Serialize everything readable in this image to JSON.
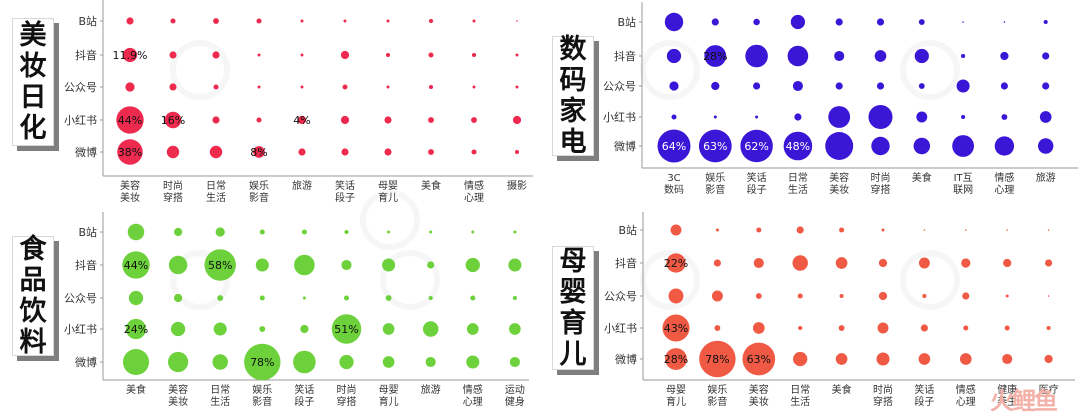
{
  "chart_data": [
    {
      "type": "bubble-matrix",
      "title": "美妆日化",
      "color": "#ee2b4f",
      "rows": [
        "B站",
        "抖音",
        "公众号",
        "小红书",
        "微博"
      ],
      "columns": [
        [
          "美容",
          "美妆"
        ],
        [
          "时尚",
          "穿搭"
        ],
        [
          "日常",
          "生活"
        ],
        [
          "娱乐",
          "影音"
        ],
        [
          "旅游"
        ],
        [
          "笑话",
          "段子"
        ],
        [
          "母婴",
          "育儿"
        ],
        [
          "美食"
        ],
        [
          "情感",
          "心理"
        ],
        [
          "摄影"
        ]
      ],
      "values": [
        [
          3,
          1.5,
          2,
          1.5,
          0.5,
          0.5,
          0.5,
          1,
          0.5,
          0
        ],
        [
          11.9,
          3,
          3,
          0.5,
          0.5,
          4,
          1,
          1.5,
          1,
          0.5
        ],
        [
          5,
          3,
          1.5,
          0.5,
          0.5,
          1.5,
          0.5,
          1,
          0.5,
          0.5
        ],
        [
          44,
          16,
          3,
          1.5,
          4,
          4,
          3,
          2,
          2,
          4
        ],
        [
          38,
          9,
          9,
          8,
          3,
          3,
          3,
          2,
          1.5,
          1
        ]
      ],
      "labels": [
        [
          null,
          null,
          null,
          null,
          null,
          null,
          null,
          null,
          null,
          null
        ],
        [
          "11.9%",
          null,
          null,
          null,
          null,
          null,
          null,
          null,
          null,
          null
        ],
        [
          null,
          null,
          null,
          null,
          null,
          null,
          null,
          null,
          null,
          null
        ],
        [
          "44%",
          "16%",
          null,
          null,
          "4%",
          null,
          null,
          null,
          null,
          null
        ],
        [
          "38%",
          null,
          null,
          "8%",
          null,
          null,
          null,
          null,
          null,
          null
        ]
      ]
    },
    {
      "type": "bubble-matrix",
      "title": "数码家电",
      "color": "#3a17d6",
      "rows": [
        "B站",
        "抖音",
        "公众号",
        "小红书",
        "微博"
      ],
      "columns": [
        [
          "3C",
          "数码"
        ],
        [
          "娱乐",
          "影音"
        ],
        [
          "笑话",
          "段子"
        ],
        [
          "日常",
          "生活"
        ],
        [
          "美容",
          "美妆"
        ],
        [
          "时尚",
          "穿搭"
        ],
        [
          "美食"
        ],
        [
          "IT互",
          "联网"
        ],
        [
          "情感",
          "心理"
        ],
        [
          "旅游"
        ]
      ],
      "values": [
        [
          20,
          3,
          2.5,
          12,
          3,
          3,
          2,
          0,
          0,
          1
        ],
        [
          12,
          28,
          30,
          25,
          6,
          8,
          12,
          1,
          4,
          3
        ],
        [
          5,
          4,
          3,
          6,
          3,
          3,
          2,
          10,
          3,
          3
        ],
        [
          1.5,
          0.5,
          0.5,
          3,
          28,
          34,
          7,
          1,
          2,
          8
        ],
        [
          64,
          63,
          62,
          48,
          46,
          20,
          16,
          28,
          22,
          14
        ]
      ],
      "labels": [
        [
          null,
          null,
          null,
          null,
          null,
          null,
          null,
          null,
          null,
          null
        ],
        [
          null,
          "28%",
          null,
          null,
          null,
          null,
          null,
          null,
          null,
          null
        ],
        [
          null,
          null,
          null,
          null,
          null,
          null,
          null,
          null,
          null,
          null
        ],
        [
          null,
          null,
          null,
          null,
          null,
          null,
          null,
          null,
          null,
          null
        ],
        [
          "64%",
          "63%",
          "62%",
          "48%",
          null,
          null,
          null,
          null,
          null,
          null
        ]
      ]
    },
    {
      "type": "bubble-matrix",
      "title": "食品饮料",
      "color": "#6cd13a",
      "rows": [
        "B站",
        "抖音",
        "公众号",
        "小红书",
        "微博"
      ],
      "columns": [
        [
          "美食"
        ],
        [
          "美容",
          "美妆"
        ],
        [
          "日常",
          "生活"
        ],
        [
          "娱乐",
          "影音"
        ],
        [
          "笑话",
          "段子"
        ],
        [
          "时尚",
          "穿搭"
        ],
        [
          "母婴",
          "育儿"
        ],
        [
          "旅游"
        ],
        [
          "情感",
          "心理"
        ],
        [
          "运动",
          "健身"
        ]
      ],
      "values": [
        [
          16,
          4,
          5,
          1.5,
          1.5,
          1,
          0.5,
          0.5,
          0.5,
          0.5
        ],
        [
          44,
          20,
          58,
          10,
          25,
          6,
          10,
          3,
          12,
          10
        ],
        [
          12,
          4,
          2,
          1.5,
          0.5,
          1.5,
          2,
          1,
          1.5,
          1
        ],
        [
          24,
          12,
          10,
          2,
          4,
          51,
          8,
          14,
          8,
          8
        ],
        [
          40,
          24,
          14,
          78,
          30,
          12,
          8,
          6,
          10,
          6
        ]
      ],
      "labels": [
        [
          null,
          null,
          null,
          null,
          null,
          null,
          null,
          null,
          null,
          null
        ],
        [
          "44%",
          null,
          "58%",
          null,
          null,
          null,
          null,
          null,
          null,
          null
        ],
        [
          null,
          null,
          null,
          null,
          null,
          null,
          null,
          null,
          null,
          null
        ],
        [
          "24%",
          null,
          null,
          null,
          null,
          "51%",
          null,
          null,
          null,
          null
        ],
        [
          null,
          null,
          null,
          "78%",
          null,
          null,
          null,
          null,
          null,
          null
        ]
      ]
    },
    {
      "type": "bubble-matrix",
      "title": "母婴育儿",
      "color": "#f05a45",
      "rows": [
        "B站",
        "抖音",
        "公众号",
        "小红书",
        "微博"
      ],
      "columns": [
        [
          "母婴",
          "育儿"
        ],
        [
          "娱乐",
          "影音"
        ],
        [
          "美容",
          "美妆"
        ],
        [
          "日常",
          "生活"
        ],
        [
          "美食"
        ],
        [
          "时尚",
          "穿搭"
        ],
        [
          "笑话",
          "段子"
        ],
        [
          "情感",
          "心理"
        ],
        [
          "健康",
          "养生"
        ],
        [
          "医疗"
        ]
      ],
      "values": [
        [
          7,
          0.5,
          1.5,
          3,
          1.5,
          0.5,
          0,
          0,
          0,
          0
        ],
        [
          22,
          3,
          6,
          14,
          8,
          4,
          7,
          5,
          4,
          3
        ],
        [
          13,
          7,
          2,
          1.5,
          1,
          4,
          1,
          3,
          0.5,
          0
        ],
        [
          43,
          2,
          8,
          1,
          2,
          7,
          3,
          1.5,
          1.5,
          1
        ],
        [
          28,
          78,
          63,
          12,
          8,
          10,
          8,
          8,
          6,
          4
        ]
      ],
      "labels": [
        [
          null,
          null,
          null,
          null,
          null,
          null,
          null,
          null,
          null,
          null
        ],
        [
          "22%",
          null,
          null,
          null,
          null,
          null,
          null,
          null,
          null,
          null
        ],
        [
          null,
          null,
          null,
          null,
          null,
          null,
          null,
          null,
          null,
          null
        ],
        [
          "43%",
          null,
          null,
          null,
          null,
          null,
          null,
          null,
          null,
          null
        ],
        [
          "28%",
          "78%",
          "63%",
          null,
          null,
          null,
          null,
          null,
          null,
          null
        ]
      ]
    }
  ],
  "watermark": "火鲤鱼"
}
